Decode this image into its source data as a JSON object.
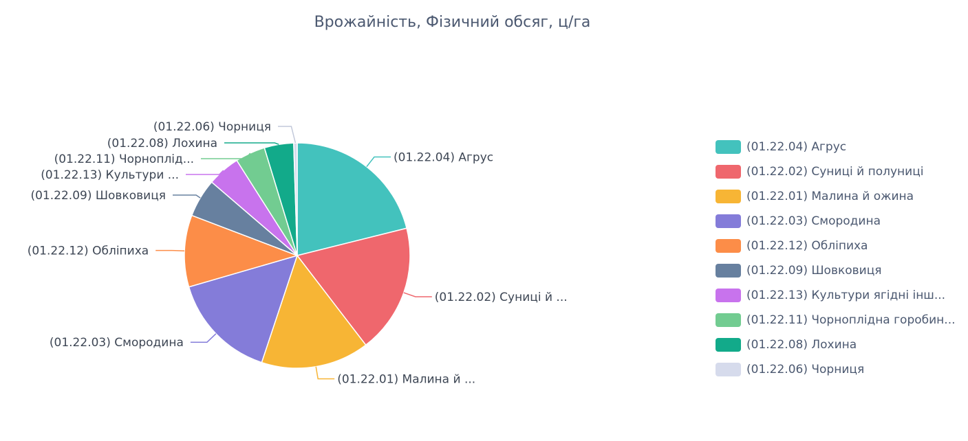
{
  "chart_data": {
    "type": "pie",
    "title": "Врожайність, Фізичний обсяг, ц/га",
    "legend_position": "right",
    "slices": [
      {
        "name": "(01.22.04) Агрус",
        "value": 21.1,
        "color": "#43c2bd",
        "label": "(01.22.04) Агрус",
        "legend": "(01.22.04) Агрус"
      },
      {
        "name": "(01.22.02) Суниці й полуниці",
        "value": 18.5,
        "color": "#ef676d",
        "label": "(01.22.02) Суниці й ...",
        "legend": "(01.22.02) Суниці й полуниці"
      },
      {
        "name": "(01.22.01) Малина й ожина",
        "value": 15.5,
        "color": "#f7b535",
        "label": "(01.22.01) Малина й ...",
        "legend": "(01.22.01) Малина й ожина"
      },
      {
        "name": "(01.22.03) Смородина",
        "value": 15.4,
        "color": "#847cd9",
        "label": "(01.22.03) Смородина",
        "legend": "(01.22.03) Смородина"
      },
      {
        "name": "(01.22.12) Обліпиха",
        "value": 10.3,
        "color": "#fc8d48",
        "label": "(01.22.12) Обліпиха",
        "legend": "(01.22.12) Обліпиха"
      },
      {
        "name": "(01.22.09) Шовковиця",
        "value": 5.5,
        "color": "#67809f",
        "label": "(01.22.09) Шовковиця",
        "legend": "(01.22.09) Шовковиця"
      },
      {
        "name": "(01.22.13) Культури ягідні інші",
        "value": 4.7,
        "color": "#c873ed",
        "label": "(01.22.13) Культури ...",
        "legend": "(01.22.13) Культури ягідні інш..."
      },
      {
        "name": "(01.22.11) Чорноплідна горобина",
        "value": 4.3,
        "color": "#72cc91",
        "label": "(01.22.11) Чорноплід...",
        "legend": "(01.22.11) Чорноплідна горобин..."
      },
      {
        "name": "(01.22.08) Лохина",
        "value": 4.2,
        "color": "#12aa8a",
        "label": "(01.22.08) Лохина",
        "legend": "(01.22.08) Лохина"
      },
      {
        "name": "(01.22.06) Чорниця",
        "value": 0.5,
        "color": "#d6dbec",
        "label": "(01.22.06) Чорниця",
        "legend": "(01.22.06) Чорниця"
      }
    ]
  }
}
